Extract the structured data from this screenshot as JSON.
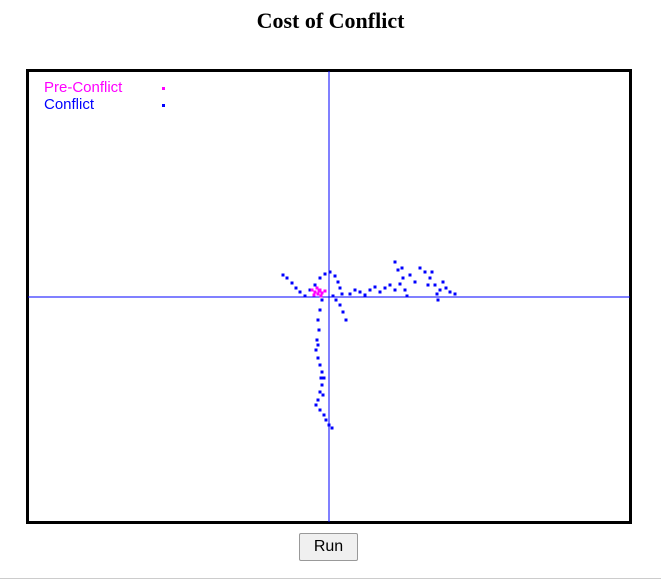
{
  "chart_data": {
    "type": "scatter",
    "title": "Cost of Conflict",
    "xlim": [
      -301,
      301
    ],
    "ylim": [
      -225,
      226
    ],
    "legend": "upper left",
    "series": [
      {
        "name": "Pre-Conflict",
        "color": "#ff00ff",
        "x": [
          -17,
          -14,
          -11,
          -9,
          -7,
          -4,
          -12,
          -8,
          -15,
          -10
        ],
        "values": [
          7,
          5,
          3,
          7,
          4,
          6,
          9,
          1,
          2,
          6
        ]
      },
      {
        "name": "Conflict",
        "color": "#0000ff",
        "x": [
          -46,
          -42,
          -37,
          -33,
          -29,
          -24,
          -19,
          -14,
          -9,
          -4,
          1,
          6,
          9,
          11,
          13,
          11,
          14,
          17,
          7,
          4,
          21,
          26,
          31,
          36,
          41,
          46,
          51,
          56,
          61,
          66,
          71,
          74,
          76,
          78,
          66,
          69,
          73,
          81,
          86,
          91,
          96,
          101,
          106,
          109,
          111,
          114,
          117,
          121,
          126,
          103,
          99,
          108,
          -7,
          -9,
          -11,
          -10,
          -12,
          -13,
          -11,
          -9,
          -7,
          -5,
          -7,
          -9,
          -11,
          -13,
          -9,
          -5,
          -3,
          0,
          3,
          -11,
          -8,
          -6
        ],
        "values": [
          22,
          19,
          14,
          9,
          5,
          1,
          7,
          12,
          19,
          23,
          25,
          21,
          15,
          9,
          3,
          -8,
          -15,
          -23,
          -3,
          1,
          3,
          7,
          5,
          2,
          7,
          10,
          5,
          9,
          12,
          7,
          13,
          19,
          7,
          1,
          35,
          27,
          29,
          22,
          15,
          29,
          25,
          19,
          12,
          -3,
          7,
          15,
          9,
          5,
          3,
          25,
          12,
          3,
          -3,
          -13,
          -23,
          -33,
          -43,
          -53,
          -61,
          -68,
          -75,
          -81,
          -88,
          -95,
          -103,
          -108,
          -113,
          -118,
          -123,
          -128,
          -131,
          -48,
          -81,
          -98
        ]
      }
    ]
  },
  "controls": {
    "run_button": "Run"
  }
}
